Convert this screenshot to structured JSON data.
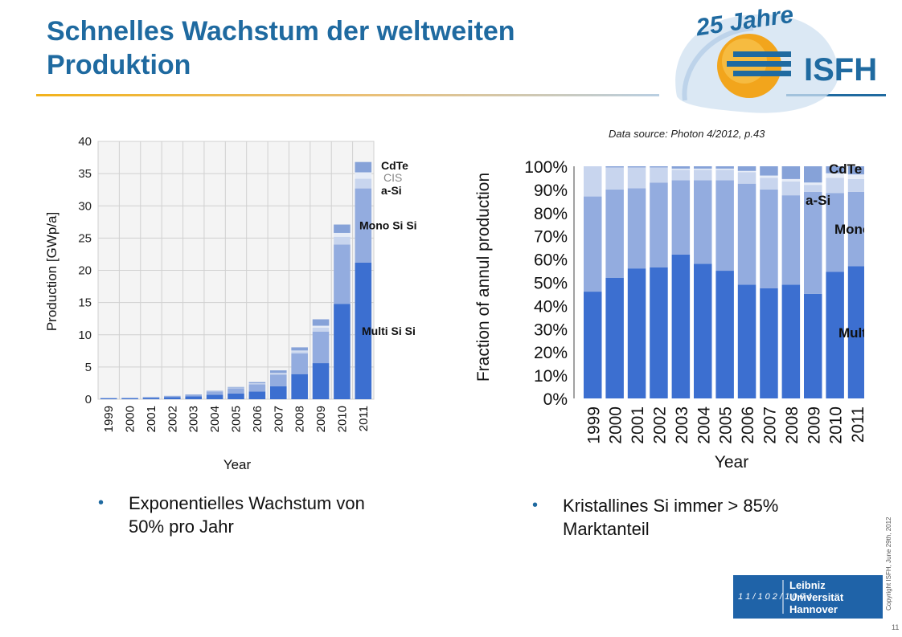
{
  "slide": {
    "title": "Schnelles Wachstum der weltweiten Produktion",
    "source": "Data source: Photon 4/2012, p.43",
    "bullets": [
      "Exponentielles Wachstum von 50% pro Jahr",
      "Kristallines Si immer > 85% Marktanteil"
    ],
    "copyright": "Copyright ISFH, June 29th, 2012",
    "page_number": "11",
    "logo_isfh": {
      "jubilee": "25 Jahre",
      "name": "ISFH"
    },
    "logo_luh": {
      "line1": "Leibniz",
      "line2": "Universität",
      "line3": "Hannover",
      "mark": "1 1 / 1 0 2 / 1 0 0 4"
    }
  },
  "colors": {
    "title": "#1f6aa0",
    "multi_si": "#3c6fd0",
    "mono_si": "#93acdf",
    "a_si": "#c8d5ee",
    "cis": "#e6ecf7",
    "cdte": "#86a2d8"
  },
  "chart_data": [
    {
      "type": "bar",
      "stacked": true,
      "categories": [
        "1999",
        "2000",
        "2001",
        "2002",
        "2003",
        "2004",
        "2005",
        "2006",
        "2007",
        "2008",
        "2009",
        "2010",
        "2011"
      ],
      "series": [
        {
          "name": "Multi Si",
          "values": [
            0.12,
            0.15,
            0.22,
            0.32,
            0.45,
            0.7,
            0.9,
            1.2,
            2.0,
            3.9,
            5.6,
            14.8,
            21.2
          ]
        },
        {
          "name": "Mono Si",
          "values": [
            0.1,
            0.1,
            0.13,
            0.2,
            0.24,
            0.5,
            0.8,
            1.1,
            1.8,
            3.2,
            4.9,
            9.2,
            11.5
          ]
        },
        {
          "name": "a-Si",
          "values": [
            0.02,
            0.02,
            0.03,
            0.03,
            0.04,
            0.05,
            0.1,
            0.15,
            0.25,
            0.35,
            0.6,
            1.2,
            1.5
          ]
        },
        {
          "name": "CIS",
          "values": [
            0,
            0,
            0,
            0,
            0,
            0,
            0,
            0.01,
            0.03,
            0.1,
            0.3,
            0.6,
            1.0
          ]
        },
        {
          "name": "CdTe",
          "values": [
            0,
            0,
            0,
            0,
            0.01,
            0.05,
            0.1,
            0.2,
            0.4,
            0.5,
            1.0,
            1.3,
            1.6
          ]
        }
      ],
      "title": "",
      "xlabel": "Year",
      "ylabel": "Production [GWp/a]",
      "ylim": [
        0,
        40
      ],
      "yticks": [
        0,
        5,
        10,
        15,
        20,
        25,
        30,
        35,
        40
      ],
      "grid": true,
      "legend": "labels at right of last bar"
    },
    {
      "type": "bar",
      "stacked": true,
      "categories": [
        "1999",
        "2000",
        "2001",
        "2002",
        "2003",
        "2004",
        "2005",
        "2006",
        "2007",
        "2008",
        "2009",
        "2010",
        "2011"
      ],
      "series": [
        {
          "name": "Multi",
          "values": [
            46,
            52,
            56,
            56.5,
            62,
            58,
            55,
            49,
            47.5,
            49,
            45,
            54.5,
            57
          ]
        },
        {
          "name": "Mono",
          "values": [
            41,
            38,
            34.5,
            36.5,
            32,
            36,
            39,
            43.5,
            42.5,
            38.5,
            44,
            34,
            32
          ]
        },
        {
          "name": "a-Si",
          "values": [
            13,
            9.5,
            9,
            6.5,
            4.5,
            4.5,
            4.5,
            5,
            5,
            6,
            3,
            6.5,
            5.5
          ]
        },
        {
          "name": "CIS",
          "values": [
            0,
            0,
            0,
            0,
            0.5,
            0.5,
            0.5,
            0.5,
            1,
            1,
            1,
            2,
            2
          ]
        },
        {
          "name": "CdTe",
          "values": [
            0,
            0.5,
            0.5,
            0.5,
            1,
            1,
            1,
            2,
            4,
            5.5,
            7,
            3,
            3.5
          ]
        }
      ],
      "title": "",
      "xlabel": "Year",
      "ylabel": "Fraction of annul production",
      "ylim": [
        0,
        100
      ],
      "yticks": [
        "0%",
        "10%",
        "20%",
        "30%",
        "40%",
        "50%",
        "60%",
        "70%",
        "80%",
        "90%",
        "100%"
      ],
      "grid": false,
      "legend": "labels at right, partially cropped"
    }
  ]
}
